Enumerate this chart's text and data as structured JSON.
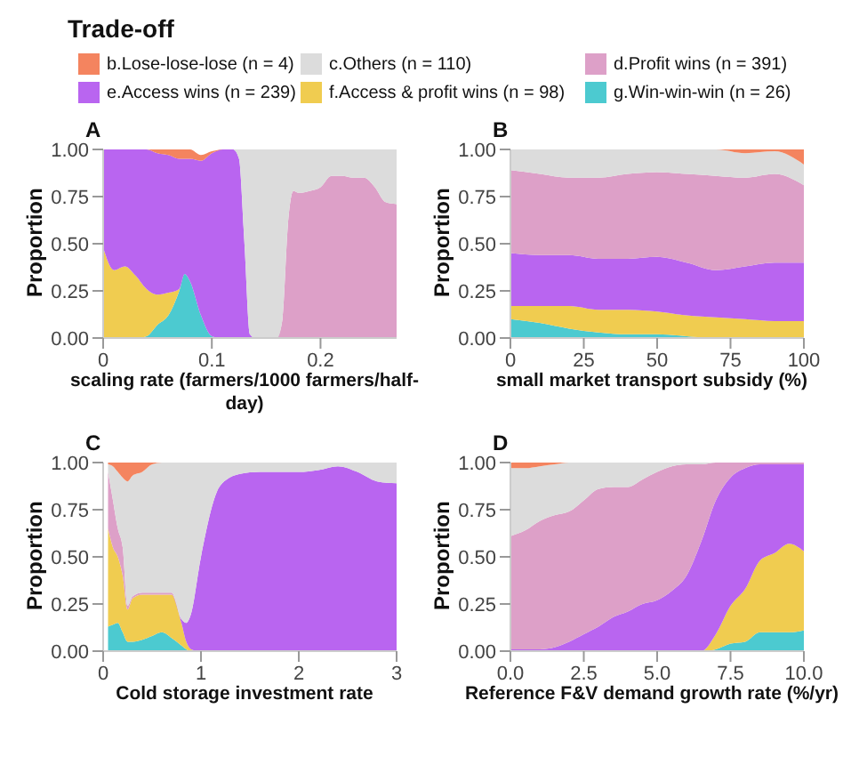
{
  "chart_data": [
    {
      "type": "area",
      "stacked": true,
      "title": "A",
      "xlabel": "scaling rate (farmers/1000 farmers/half-day)",
      "ylabel": "Proportion",
      "legend": "top",
      "legend_title": "Trade-off",
      "xlim": [
        0,
        0.27
      ],
      "xticks": [
        0,
        0.1,
        0.2
      ],
      "ylim": [
        0,
        1
      ],
      "yticks": [
        {
          "value": 0,
          "label": "0.00"
        },
        {
          "value": 0.25,
          "label": "0.25"
        },
        {
          "value": 0.5,
          "label": "0.50"
        },
        {
          "value": 0.75,
          "label": "0.75"
        },
        {
          "value": 1,
          "label": "1.00"
        }
      ],
      "grid": false,
      "x": [
        0,
        0.01,
        0.02,
        0.03,
        0.04,
        0.05,
        0.06,
        0.07,
        0.075,
        0.08,
        0.09,
        0.1,
        0.11,
        0.12,
        0.125,
        0.13,
        0.135,
        0.14,
        0.15,
        0.16,
        0.165,
        0.17,
        0.175,
        0.18,
        0.19,
        0.2,
        0.21,
        0.22,
        0.23,
        0.24,
        0.25,
        0.26,
        0.27
      ],
      "series": [
        {
          "name": "g.Win-win-win (n = 26)",
          "color": "#4ccad0",
          "values": [
            0,
            0,
            0,
            0,
            0.01,
            0.07,
            0.12,
            0.25,
            0.34,
            0.3,
            0.12,
            0.01,
            0,
            0,
            0,
            0,
            0,
            0,
            0,
            0,
            0,
            0,
            0,
            0,
            0,
            0,
            0,
            0,
            0,
            0,
            0,
            0,
            0
          ]
        },
        {
          "name": "f.Access & profit wins (n = 98)",
          "color": "#f0cc50",
          "values": [
            0.48,
            0.36,
            0.38,
            0.33,
            0.25,
            0.16,
            0.12,
            0.01,
            0,
            0,
            0,
            0,
            0,
            0,
            0,
            0,
            0,
            0,
            0,
            0,
            0,
            0,
            0,
            0,
            0,
            0,
            0,
            0,
            0,
            0,
            0,
            0,
            0
          ]
        },
        {
          "name": "e.Access wins (n = 239)",
          "color": "#b965f0",
          "values": [
            0.52,
            0.64,
            0.62,
            0.67,
            0.74,
            0.75,
            0.73,
            0.69,
            0.61,
            0.65,
            0.82,
            0.97,
            1,
            1,
            0.95,
            0.5,
            0.02,
            0,
            0,
            0,
            0,
            0,
            0,
            0,
            0,
            0,
            0,
            0,
            0,
            0,
            0,
            0,
            0
          ]
        },
        {
          "name": "d.Profit wins (n = 391)",
          "color": "#dda0c8",
          "values": [
            null,
            null,
            null,
            null,
            null,
            null,
            null,
            null,
            null,
            null,
            null,
            null,
            null,
            null,
            null,
            null,
            null,
            null,
            null,
            0,
            0.1,
            0.6,
            0.78,
            0.77,
            0.78,
            0.8,
            0.86,
            0.86,
            0.85,
            0.85,
            0.8,
            0.72,
            0.71
          ]
        },
        {
          "name": "c.Others (n = 110)",
          "color": "#dcdcdc",
          "values": [
            null,
            null,
            null,
            null,
            null,
            null,
            null,
            null,
            null,
            null,
            null,
            null,
            null,
            0,
            0.05,
            0.5,
            0.98,
            1,
            1,
            1,
            0.9,
            0.4,
            0.22,
            0.23,
            0.22,
            0.2,
            0.14,
            0.14,
            0.15,
            0.15,
            0.2,
            0.28,
            0.29
          ]
        },
        {
          "name": "b.Lose-lose-lose (n = 4)",
          "color": "#f4845f",
          "values": [
            null,
            null,
            null,
            0,
            0,
            0.02,
            0.03,
            0.05,
            0.05,
            0.05,
            0.03,
            0.01,
            0,
            null,
            null,
            null,
            null,
            null,
            null,
            null,
            null,
            null,
            null,
            null,
            null,
            null,
            null,
            null,
            null,
            null,
            null,
            null,
            null
          ]
        }
      ]
    },
    {
      "type": "area",
      "stacked": true,
      "title": "B",
      "xlabel": "small market transport subsidy (%)",
      "ylabel": "Proportion",
      "xlim": [
        0,
        100
      ],
      "xticks": [
        0,
        25,
        50,
        75,
        100
      ],
      "ylim": [
        0,
        1
      ],
      "yticks": [
        {
          "value": 0,
          "label": "0.00"
        },
        {
          "value": 0.25,
          "label": "0.25"
        },
        {
          "value": 0.5,
          "label": "0.50"
        },
        {
          "value": 0.75,
          "label": "0.75"
        },
        {
          "value": 1,
          "label": "1.00"
        }
      ],
      "grid": false,
      "x": [
        0,
        10,
        20,
        30,
        40,
        50,
        60,
        70,
        80,
        90,
        100
      ],
      "series": [
        {
          "color": "#4ccad0",
          "values": [
            0.1,
            0.08,
            0.05,
            0.03,
            0.02,
            0.02,
            0.01,
            0,
            0,
            0,
            0
          ]
        },
        {
          "color": "#f0cc50",
          "values": [
            0.07,
            0.09,
            0.12,
            0.12,
            0.13,
            0.12,
            0.11,
            0.11,
            0.1,
            0.09,
            0.09
          ]
        },
        {
          "color": "#b965f0",
          "values": [
            0.28,
            0.27,
            0.27,
            0.27,
            0.27,
            0.29,
            0.28,
            0.25,
            0.28,
            0.31,
            0.31
          ]
        },
        {
          "color": "#dda0c8",
          "values": [
            0.44,
            0.43,
            0.41,
            0.43,
            0.45,
            0.45,
            0.47,
            0.5,
            0.47,
            0.47,
            0.41
          ]
        },
        {
          "color": "#dcdcdc",
          "values": [
            0.11,
            0.13,
            0.15,
            0.15,
            0.13,
            0.12,
            0.13,
            0.14,
            0.13,
            0.12,
            0.11
          ]
        },
        {
          "color": "#f4845f",
          "values": [
            0,
            0,
            0,
            0,
            0,
            0,
            0,
            0,
            0.02,
            0.01,
            0.08
          ]
        }
      ]
    },
    {
      "type": "area",
      "stacked": true,
      "title": "C",
      "xlabel": "Cold storage investment rate",
      "ylabel": "Proportion",
      "xlim": [
        0,
        3
      ],
      "xticks": [
        0,
        1,
        2,
        3
      ],
      "ylim": [
        0,
        1
      ],
      "yticks": [
        {
          "value": 0,
          "label": "0.00"
        },
        {
          "value": 0.25,
          "label": "0.25"
        },
        {
          "value": 0.5,
          "label": "0.50"
        },
        {
          "value": 0.75,
          "label": "0.75"
        },
        {
          "value": 1,
          "label": "1.00"
        }
      ],
      "grid": false,
      "x": [
        0.05,
        0.1,
        0.15,
        0.2,
        0.25,
        0.3,
        0.4,
        0.5,
        0.6,
        0.7,
        0.8,
        0.85,
        0.9,
        1,
        1.2,
        1.4,
        1.6,
        1.8,
        2,
        2.2,
        2.4,
        2.6,
        2.8,
        3
      ],
      "series": [
        {
          "color": "#4ccad0",
          "values": [
            0.13,
            0.14,
            0.15,
            0.1,
            0.05,
            0.05,
            0.06,
            0.08,
            0.1,
            0.07,
            0.03,
            0.01,
            0,
            0,
            0,
            0,
            0,
            0,
            0,
            0,
            0,
            0,
            0,
            0
          ]
        },
        {
          "color": "#f0cc50",
          "values": [
            0.52,
            0.41,
            0.35,
            0.3,
            0.17,
            0.23,
            0.24,
            0.22,
            0.2,
            0.23,
            0.12,
            0.04,
            0.01,
            0,
            0,
            0,
            0,
            0,
            0,
            0,
            0,
            0,
            0,
            0
          ]
        },
        {
          "color": "#b965f0",
          "values": [
            0,
            0,
            0,
            0,
            0,
            0,
            0,
            0,
            0,
            0,
            0.02,
            0.1,
            0.19,
            0.5,
            0.88,
            0.94,
            0.95,
            0.95,
            0.95,
            0.96,
            0.98,
            0.95,
            0.9,
            0.89
          ]
        },
        {
          "color": "#dda0c8",
          "values": [
            0.3,
            0.25,
            0.15,
            0.15,
            0.02,
            0.01,
            0.01,
            0.01,
            0.01,
            0.01,
            0,
            0,
            0,
            0,
            0,
            0,
            0,
            0,
            0,
            0,
            0,
            0,
            0,
            0
          ]
        },
        {
          "color": "#dcdcdc",
          "values": [
            0.04,
            0.18,
            0.3,
            0.37,
            0.66,
            0.64,
            0.64,
            0.68,
            0.69,
            0.69,
            0.83,
            0.85,
            0.8,
            0.5,
            0.12,
            0.06,
            0.05,
            0.05,
            0.05,
            0.04,
            0.02,
            0.05,
            0.1,
            0.11
          ]
        },
        {
          "color": "#f4845f",
          "values": [
            0.01,
            0.02,
            0.05,
            0.08,
            0.1,
            0.07,
            0.05,
            0.01,
            0,
            0,
            0,
            0,
            0,
            0,
            0,
            0,
            0,
            0,
            0,
            0,
            0,
            0,
            0,
            0
          ]
        }
      ]
    },
    {
      "type": "area",
      "stacked": true,
      "title": "D",
      "xlabel": "Reference F&V demand growth rate (%/yr)",
      "ylabel": "Proportion",
      "xlim": [
        0,
        10
      ],
      "xticks": [
        {
          "value": 0,
          "label": "0.0"
        },
        2.5,
        {
          "value": 5,
          "label": "5.0"
        },
        7.5,
        {
          "value": 10,
          "label": "10.0"
        }
      ],
      "ylim": [
        0,
        1
      ],
      "yticks": [
        {
          "value": 0,
          "label": "0.00"
        },
        {
          "value": 0.25,
          "label": "0.25"
        },
        {
          "value": 0.5,
          "label": "0.50"
        },
        {
          "value": 0.75,
          "label": "0.75"
        },
        {
          "value": 1,
          "label": "1.00"
        }
      ],
      "grid": false,
      "x": [
        0,
        0.5,
        1,
        1.5,
        2,
        2.5,
        3,
        3.5,
        4,
        4.5,
        5,
        5.5,
        6,
        6.5,
        7,
        7.5,
        8,
        8.5,
        9,
        9.5,
        10
      ],
      "series": [
        {
          "color": "#4ccad0",
          "values": [
            0,
            0,
            0,
            0,
            0,
            0,
            0,
            0,
            0,
            0,
            0,
            0,
            0,
            0,
            0.01,
            0.04,
            0.05,
            0.1,
            0.1,
            0.1,
            0.11
          ]
        },
        {
          "color": "#f0cc50",
          "values": [
            0,
            0,
            0,
            0,
            0,
            0,
            0,
            0,
            0,
            0,
            0,
            0,
            0,
            0,
            0.08,
            0.2,
            0.28,
            0.38,
            0.42,
            0.47,
            0.42
          ]
        },
        {
          "color": "#b965f0",
          "values": [
            0.01,
            0.01,
            0.01,
            0.02,
            0.05,
            0.09,
            0.13,
            0.18,
            0.21,
            0.25,
            0.27,
            0.32,
            0.4,
            0.58,
            0.71,
            0.68,
            0.64,
            0.51,
            0.47,
            0.42,
            0.46
          ]
        },
        {
          "color": "#dda0c8",
          "values": [
            0.6,
            0.63,
            0.68,
            0.7,
            0.69,
            0.71,
            0.73,
            0.69,
            0.66,
            0.66,
            0.68,
            0.66,
            0.59,
            0.41,
            0.2,
            0.08,
            0.03,
            0.01,
            0.01,
            0.01,
            0.01
          ]
        },
        {
          "color": "#dcdcdc",
          "values": [
            0.36,
            0.33,
            0.29,
            0.27,
            0.26,
            0.2,
            0.14,
            0.13,
            0.13,
            0.09,
            0.05,
            0.02,
            0.01,
            0.01,
            0,
            0,
            0,
            0,
            0,
            0,
            0
          ]
        },
        {
          "color": "#f4845f",
          "values": [
            0.03,
            0.03,
            0.02,
            0.01,
            0,
            0,
            0,
            0,
            0,
            0,
            0,
            0,
            0,
            0,
            0,
            0,
            0,
            0,
            0,
            0,
            0
          ]
        }
      ]
    }
  ]
}
